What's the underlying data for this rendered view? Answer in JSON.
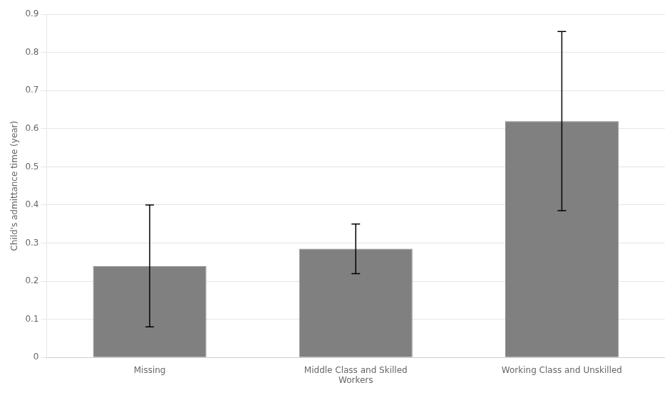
{
  "chart_data": {
    "type": "bar",
    "ylabel": "Child's admittance time (year)",
    "categories": [
      "Missing",
      "Middle Class and Skilled\nWorkers",
      "Working Class and Unskilled"
    ],
    "values": [
      0.24,
      0.285,
      0.62
    ],
    "errors_lower": [
      0.16,
      0.065,
      0.235
    ],
    "errors_upper": [
      0.16,
      0.065,
      0.235
    ],
    "color": "#808080",
    "ylim": [
      0,
      0.9
    ],
    "yticks": [
      0,
      0.1,
      0.2,
      0.3,
      0.4,
      0.5,
      0.6,
      0.7,
      0.8,
      0.9
    ],
    "grid": true
  }
}
